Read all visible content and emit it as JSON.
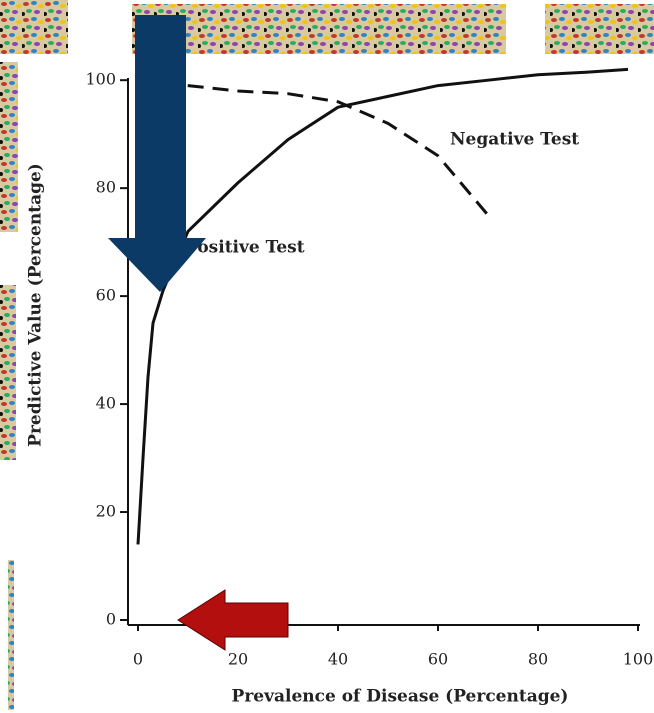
{
  "chart_data": {
    "type": "line",
    "xlabel": "Prevalence of Disease (Percentage)",
    "ylabel": "Predictive Value (Percentage)",
    "annotations": [
      "Negative Test",
      "Positive Test"
    ],
    "xlim": [
      -2,
      100
    ],
    "xticks": [
      0,
      20,
      40,
      60,
      80,
      100
    ],
    "ylim": [
      0,
      103
    ],
    "yticks": [
      0,
      20,
      40,
      60,
      80,
      100
    ],
    "series": [
      {
        "name": "Positive Test",
        "color": "#111111",
        "dashed": false,
        "x": [
          0,
          1,
          2,
          3,
          5,
          10,
          20,
          30,
          40,
          50,
          60,
          70,
          80,
          90,
          98
        ],
        "values": [
          14,
          30,
          45,
          55,
          61,
          72,
          81,
          89,
          95,
          97,
          99,
          100,
          101,
          101.5,
          102
        ]
      },
      {
        "name": "Negative Test",
        "color": "#111111",
        "dashed": true,
        "x": [
          0,
          10,
          20,
          30,
          40,
          50,
          60,
          70
        ],
        "values": [
          100,
          99,
          98,
          97.5,
          96,
          92,
          86,
          75
        ]
      }
    ]
  }
}
